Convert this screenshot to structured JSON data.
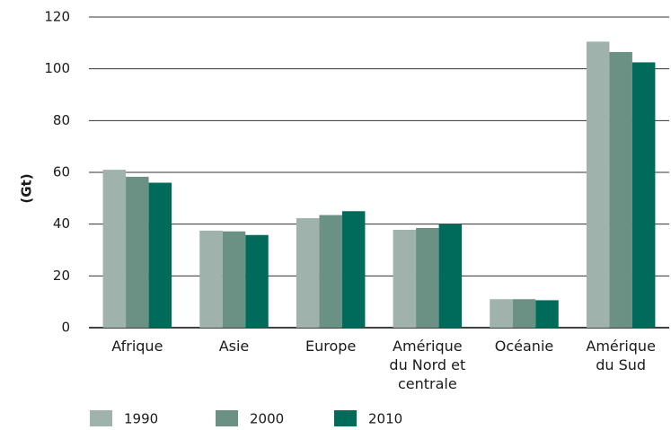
{
  "chart_data": {
    "type": "bar",
    "ylabel": "(Gt)",
    "categories": [
      "Afrique",
      "Asie",
      "Europe",
      "Amérique du Nord et centrale",
      "Océanie",
      "Amérique du Sud"
    ],
    "series": [
      {
        "name": "1990",
        "color": "#9fb2ab",
        "values": [
          61,
          37.5,
          42.3,
          37.8,
          11,
          110.5
        ]
      },
      {
        "name": "2000",
        "color": "#6b9184",
        "values": [
          58.3,
          37.2,
          43.5,
          38.5,
          11,
          106.5
        ]
      },
      {
        "name": "2010",
        "color": "#006b5b",
        "values": [
          56,
          35.8,
          45,
          40,
          10.6,
          102.5
        ]
      }
    ],
    "ylim": [
      0,
      120
    ],
    "yticks": [
      0,
      20,
      40,
      60,
      80,
      100,
      120
    ],
    "grid": true,
    "legend": "bottom"
  }
}
